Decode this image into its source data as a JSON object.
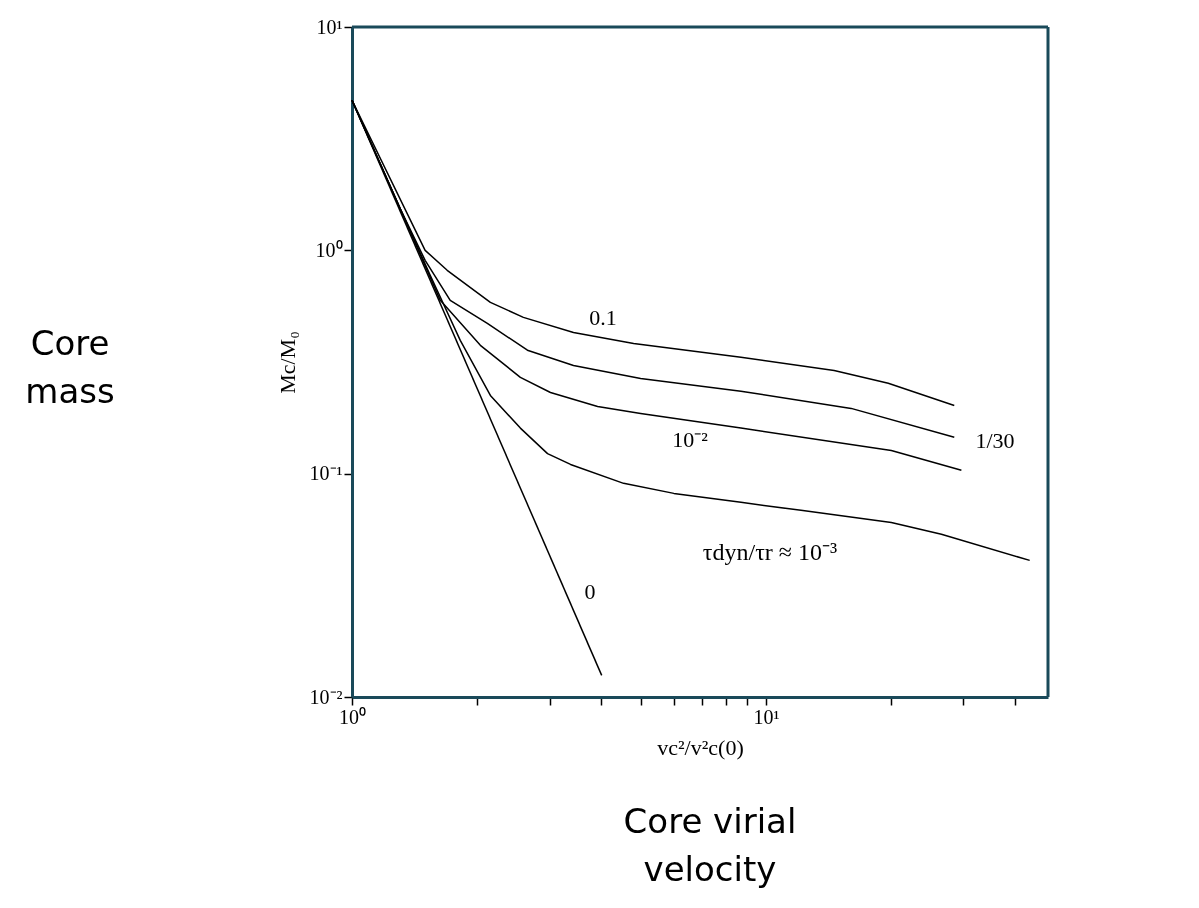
{
  "chart_data": {
    "type": "line",
    "xlabel": "vc²/v²c(0)",
    "ylabel": "Mc/M₀",
    "log": "xy",
    "grid": false,
    "marker": "none",
    "line_style": "solid",
    "xlim": [
      1,
      48
    ],
    "ylim": [
      0.01,
      10
    ],
    "xticks": [
      {
        "value": 1,
        "label": "10⁰"
      },
      {
        "value": 2,
        "label": null
      },
      {
        "value": 3,
        "label": null
      },
      {
        "value": 4,
        "label": null
      },
      {
        "value": 5,
        "label": null
      },
      {
        "value": 6,
        "label": null
      },
      {
        "value": 7,
        "label": null
      },
      {
        "value": 8,
        "label": null
      },
      {
        "value": 9,
        "label": null
      },
      {
        "value": 10,
        "label": "10¹"
      },
      {
        "value": 20,
        "label": null
      },
      {
        "value": 30,
        "label": null
      },
      {
        "value": 40,
        "label": null
      }
    ],
    "yticks": [
      {
        "value": 0.01,
        "label": "10⁻²"
      },
      {
        "value": 0.1,
        "label": "10⁻¹"
      },
      {
        "value": 1,
        "label": "10⁰"
      },
      {
        "value": 10,
        "label": "10¹"
      }
    ],
    "series": [
      {
        "color": "#000000",
        "x": [
          1.0,
          1.502,
          1.698,
          1.776,
          2.159,
          2.594,
          3.428,
          4.79,
          8.7,
          14.61,
          19.74,
          28.5
        ],
        "values": [
          4.7,
          1.0,
          0.814,
          0.765,
          0.585,
          0.501,
          0.429,
          0.383,
          0.332,
          0.29,
          0.254,
          0.202
        ]
      },
      {
        "color": "#000000",
        "x": [
          1.0,
          1.307,
          1.502,
          1.727,
          2.123,
          2.653,
          3.428,
          4.98,
          8.7,
          16.06,
          28.5
        ],
        "values": [
          4.7,
          1.54,
          0.902,
          0.597,
          0.471,
          0.357,
          0.305,
          0.267,
          0.234,
          0.196,
          0.1455
        ]
      },
      {
        "color": "#000000",
        "x": [
          1.0,
          1.307,
          1.634,
          2.042,
          2.551,
          3.016,
          3.92,
          4.98,
          8.7,
          20.08,
          29.65
        ],
        "values": [
          4.7,
          1.54,
          0.597,
          0.3755,
          0.27,
          0.231,
          0.2,
          0.186,
          0.16,
          0.127,
          0.1035
        ]
      },
      {
        "color": "#000000",
        "x": [
          1.0,
          1.307,
          1.545,
          1.826,
          2.159,
          2.551,
          2.967,
          3.372,
          4.53,
          5.99,
          8.7,
          12.15,
          20.08,
          26.53,
          43.35
        ],
        "values": [
          4.7,
          1.54,
          0.773,
          0.395,
          0.224,
          0.16,
          0.123,
          0.11,
          0.0905,
          0.0816,
          0.0744,
          0.0685,
          0.0605,
          0.0535,
          0.0409
        ]
      },
      {
        "color": "#000000",
        "x": [
          1.0,
          4.01
        ],
        "values": [
          4.7,
          0.0125
        ]
      }
    ],
    "annotations": [
      "0.1",
      "1/30",
      "10⁻²",
      "τdyn/τr ≈ 10⁻³",
      "0",
      "Core mass",
      "Core virial velocity"
    ]
  }
}
